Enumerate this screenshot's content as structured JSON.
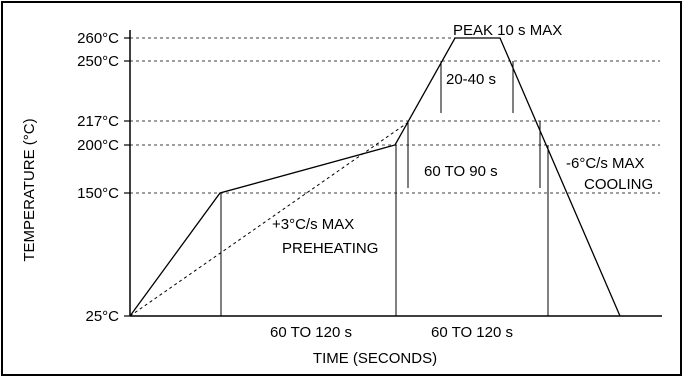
{
  "chart_data": {
    "type": "line",
    "title": "",
    "xlabel": "TIME (SECONDS)",
    "ylabel": "TEMPERATURE (°C)",
    "y_ticks": [
      {
        "value": 25,
        "label": "25°C"
      },
      {
        "value": 150,
        "label": "150°C"
      },
      {
        "value": 200,
        "label": "200°C"
      },
      {
        "value": 217,
        "label": "217°C"
      },
      {
        "value": 250,
        "label": "250°C"
      },
      {
        "value": 260,
        "label": "260°C"
      }
    ],
    "series": [
      {
        "style": "solid",
        "points": [
          {
            "x": 0,
            "y": 25
          },
          {
            "x": 90,
            "y": 150
          },
          {
            "x": 265,
            "y": 200
          },
          {
            "x": 325,
            "y": 260
          },
          {
            "x": 370,
            "y": 260
          },
          {
            "x": 490,
            "y": 25
          }
        ]
      },
      {
        "style": "dashed",
        "points": [
          {
            "x": 0,
            "y": 25
          },
          {
            "x": 280,
            "y": 217
          }
        ]
      }
    ],
    "annotations": {
      "peak": "PEAK 10 s MAX",
      "above_250": "20-40 s",
      "above_217": "60 TO 90 s",
      "cooling_rate": "-6°C/s MAX",
      "cooling": "COOLING",
      "preheat_rate": "+3°C/s MAX",
      "preheating": "PREHEATING",
      "interval_1": "60 TO 120 s",
      "interval_2": "60 TO 120 s"
    }
  }
}
